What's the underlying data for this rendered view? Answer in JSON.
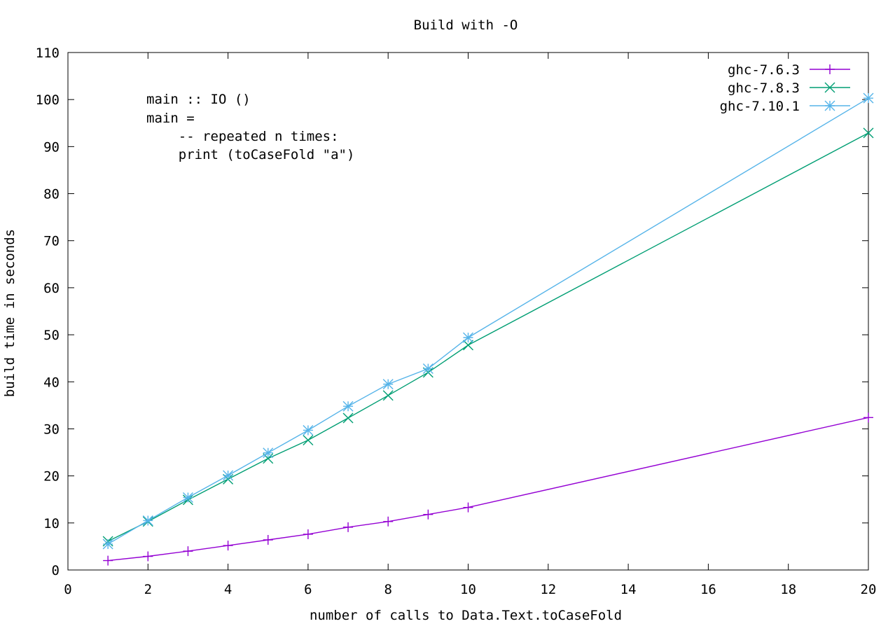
{
  "chart_data": {
    "type": "line",
    "title": "Build with -O",
    "xlabel": "number of calls to Data.Text.toCaseFold",
    "ylabel": "build time in seconds",
    "xlim": [
      0,
      20
    ],
    "ylim": [
      0,
      110
    ],
    "x_ticks": [
      0,
      2,
      4,
      6,
      8,
      10,
      12,
      14,
      16,
      18,
      20
    ],
    "y_ticks": [
      0,
      10,
      20,
      30,
      40,
      50,
      60,
      70,
      80,
      90,
      100,
      110
    ],
    "grid": false,
    "legend_position": "top-right",
    "annotation": [
      "main :: IO ()",
      "main =",
      "    -- repeated n times:",
      "    print (toCaseFold \"a\")"
    ],
    "series": [
      {
        "name": "ghc-7.6.3",
        "color": "#9400d3",
        "marker": "plus",
        "x": [
          1,
          2,
          3,
          4,
          5,
          6,
          7,
          8,
          9,
          10,
          20
        ],
        "y": [
          2.0,
          2.9,
          4.0,
          5.2,
          6.4,
          7.6,
          9.1,
          10.3,
          11.8,
          13.3,
          32.4
        ]
      },
      {
        "name": "ghc-7.8.3",
        "color": "#009e73",
        "marker": "cross",
        "x": [
          1,
          2,
          3,
          4,
          5,
          6,
          7,
          8,
          9,
          10,
          20
        ],
        "y": [
          6.1,
          10.3,
          14.9,
          19.3,
          23.7,
          27.6,
          32.3,
          37.1,
          42.0,
          47.8,
          92.9
        ]
      },
      {
        "name": "ghc-7.10.1",
        "color": "#56b4e9",
        "marker": "star",
        "x": [
          1,
          2,
          3,
          4,
          5,
          6,
          7,
          8,
          9,
          10,
          20
        ],
        "y": [
          5.5,
          10.5,
          15.4,
          20.1,
          24.9,
          29.7,
          34.8,
          39.5,
          42.8,
          49.4,
          100.3
        ]
      }
    ]
  }
}
